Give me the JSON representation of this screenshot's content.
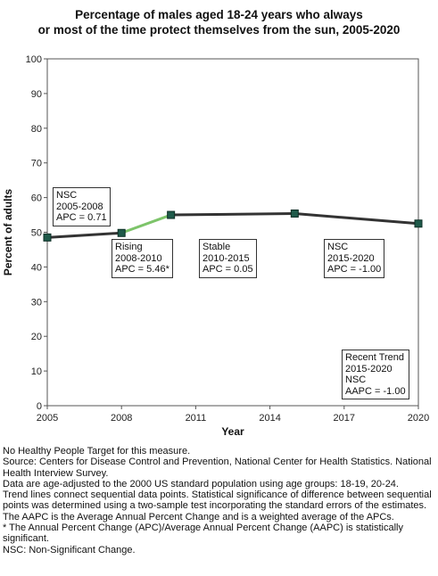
{
  "chart_data": {
    "type": "line",
    "title": [
      "Percentage of males aged 18-24 years who always",
      "or most of the time protect themselves from the sun, 2005-2020"
    ],
    "xlabel": "Year",
    "ylabel": "Percent of adults",
    "xlim": [
      2005,
      2020
    ],
    "ylim": [
      0,
      100
    ],
    "x_ticks": [
      2005,
      2008,
      2011,
      2014,
      2017,
      2020
    ],
    "y_ticks": [
      0,
      10,
      20,
      30,
      40,
      50,
      60,
      70,
      80,
      90,
      100
    ],
    "points": [
      {
        "x": 2005,
        "y": 48.5
      },
      {
        "x": 2008,
        "y": 49.8
      },
      {
        "x": 2010,
        "y": 55.0
      },
      {
        "x": 2015,
        "y": 55.4
      },
      {
        "x": 2020,
        "y": 52.5
      }
    ],
    "segments": [
      {
        "from": 2005,
        "to": 2008,
        "color": "#333333"
      },
      {
        "from": 2008,
        "to": 2010,
        "color": "#7dc46a"
      },
      {
        "from": 2010,
        "to": 2015,
        "color": "#333333"
      },
      {
        "from": 2015,
        "to": 2020,
        "color": "#333333"
      }
    ],
    "colors": {
      "line": "#333333",
      "rising": "#7dc46a",
      "marker": "#1f5a4a",
      "grid": "#cccccc"
    },
    "grid": false,
    "annotations": [
      {
        "lines": [
          "NSC",
          "2005-2008",
          "APC =  0.71"
        ]
      },
      {
        "lines": [
          "Rising",
          "2008-2010",
          "APC =  5.46*"
        ]
      },
      {
        "lines": [
          "Stable",
          "2010-2015",
          "APC =  0.05"
        ]
      },
      {
        "lines": [
          "NSC",
          "2015-2020",
          "APC = -1.00"
        ]
      },
      {
        "lines": [
          "Recent Trend",
          "2015-2020",
          "NSC",
          "AAPC = -1.00"
        ]
      }
    ]
  },
  "notes": [
    "No Healthy People Target for this measure.",
    "Source: Centers for Disease Control and Prevention, National Center for Health Statistics. National Health Interview Survey.",
    "Data are age-adjusted to the 2000 US standard population using age groups: 18-19, 20-24.",
    "Trend lines connect sequential data points. Statistical significance of difference between sequential points was determined using a two-sample test incorporating the standard errors of the estimates.",
    "The AAPC is the Average Annual Percent Change and is a weighted average of the APCs.",
    "* The Annual Percent Change (APC)/Average Annual Percent Change (AAPC) is statistically significant.",
    "NSC: Non-Significant Change."
  ]
}
